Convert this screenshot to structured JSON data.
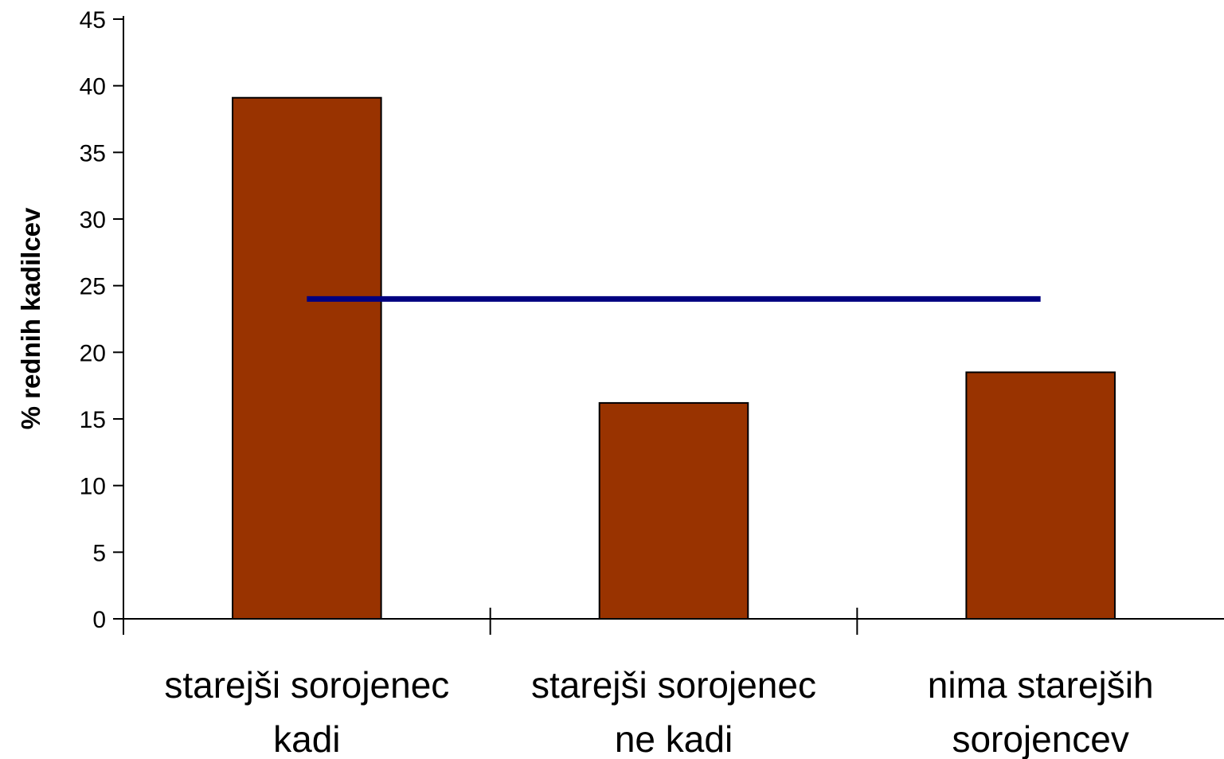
{
  "chart_data": {
    "type": "bar",
    "categories": [
      [
        "starejši sorojenec",
        "kadi"
      ],
      [
        "starejši sorojenec",
        "ne kadi"
      ],
      [
        "nima starejših",
        "sorojencev"
      ]
    ],
    "values": [
      39.1,
      16.2,
      18.5
    ],
    "reference_line": 24,
    "title": "",
    "xlabel": "",
    "ylabel": "% rednih kadilcev",
    "ylim": [
      0,
      45
    ],
    "yticks": [
      0,
      5,
      10,
      15,
      20,
      25,
      30,
      35,
      40,
      45
    ],
    "grid": false,
    "legend": "none",
    "colors": {
      "bar_fill": "#993300",
      "bar_stroke": "#000000",
      "reference_line": "#000080",
      "axis": "#000000"
    }
  }
}
